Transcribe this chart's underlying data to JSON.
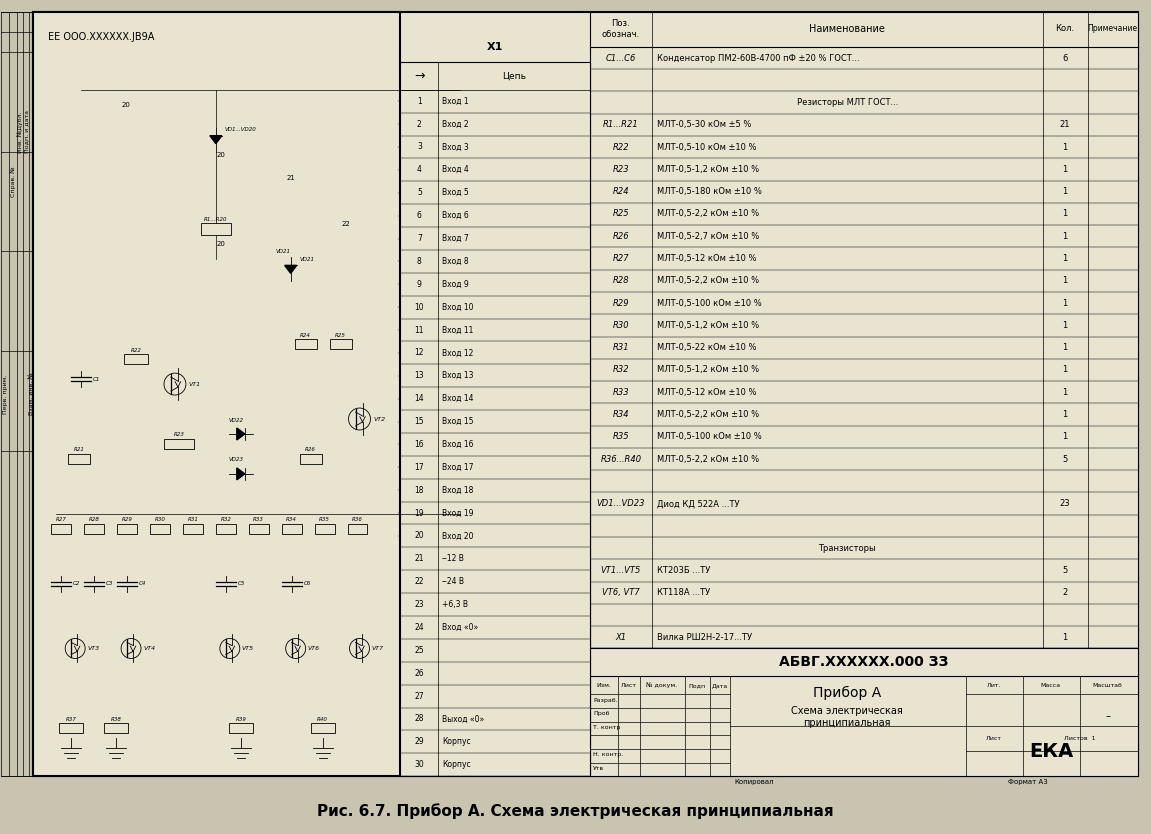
{
  "title": "Рис. 6.7. Прибор А. Схема электрическая принципиальная",
  "bg_color": "#e8e4d0",
  "border_color": "#000000",
  "bom_rows": [
    [
      "C1...C6",
      "Конденсатор ПМ2-60В-4700 пФ ±20 % ГОСТ...",
      "6",
      ""
    ],
    [
      "",
      "",
      "",
      ""
    ],
    [
      "",
      "Резисторы МЛТ ГОСТ...",
      "",
      ""
    ],
    [
      "R1...R21",
      "МЛТ-0,5-30 кОм ±5 %",
      "21",
      ""
    ],
    [
      "R22",
      "МЛТ-0,5-10 кОм ±10 %",
      "1",
      ""
    ],
    [
      "R23",
      "МЛТ-0,5-1,2 кОм ±10 %",
      "1",
      ""
    ],
    [
      "R24",
      "МЛТ-0,5-180 кОм ±10 %",
      "1",
      ""
    ],
    [
      "R25",
      "МЛТ-0,5-2,2 кОм ±10 %",
      "1",
      ""
    ],
    [
      "R26",
      "МЛТ-0,5-2,7 кОм ±10 %",
      "1",
      ""
    ],
    [
      "R27",
      "МЛТ-0,5-12 кОм ±10 %",
      "1",
      ""
    ],
    [
      "R28",
      "МЛТ-0,5-2,2 кОм ±10 %",
      "1",
      ""
    ],
    [
      "R29",
      "МЛТ-0,5-100 кОм ±10 %",
      "1",
      ""
    ],
    [
      "R30",
      "МЛТ-0,5-1,2 кОм ±10 %",
      "1",
      ""
    ],
    [
      "R31",
      "МЛТ-0,5-22 кОм ±10 %",
      "1",
      ""
    ],
    [
      "R32",
      "МЛТ-0,5-1,2 кОм ±10 %",
      "1",
      ""
    ],
    [
      "R33",
      "МЛТ-0,5-12 кОм ±10 %",
      "1",
      ""
    ],
    [
      "R34",
      "МЛТ-0,5-2,2 кОм ±10 %",
      "1",
      ""
    ],
    [
      "R35",
      "МЛТ-0,5-100 кОм ±10 %",
      "1",
      ""
    ],
    [
      "R36...R40",
      "МЛТ-0,5-2,2 кОм ±10 %",
      "5",
      ""
    ],
    [
      "",
      "",
      "",
      ""
    ],
    [
      "VD1...VD23",
      "Диод КД 522А ...ТУ",
      "23",
      ""
    ],
    [
      "",
      "",
      "",
      ""
    ],
    [
      "",
      "Транзисторы",
      "",
      ""
    ],
    [
      "VT1...VT5",
      "КТ203Б ...ТУ",
      "5",
      ""
    ],
    [
      "VT6, VT7",
      "КТ118А ...ТУ",
      "2",
      ""
    ],
    [
      "",
      "",
      "",
      ""
    ],
    [
      "X1",
      "Вилка РШ2Н-2-17...ТУ",
      "1",
      ""
    ]
  ],
  "stamp_code": "АБВГ.XXXXXX.000 ЗЗ",
  "stamp_title1": "Прибор А",
  "stamp_title2": "Схема электрическая",
  "stamp_title3": "принципиальная",
  "stamp_lit": "Лит.",
  "stamp_mass": "Масса",
  "stamp_scale": "Масштаб",
  "stamp_dash": "–",
  "stamp_list": "Лист",
  "stamp_listov": "Листов  1",
  "stamp_org": "ЕКА",
  "stamp_kopirov": "Копировал",
  "stamp_format": "Формат А3",
  "schematic_title": "ЕЕ ООО.XXXXXX.JB9A",
  "x1_label": "X1",
  "connector_rows": [
    [
      "1",
      "Вход 1"
    ],
    [
      "2",
      "Вход 2"
    ],
    [
      "3",
      "Вход 3"
    ],
    [
      "4",
      "Вход 4"
    ],
    [
      "5",
      "Вход 5"
    ],
    [
      "6",
      "Вход 6"
    ],
    [
      "7",
      "Вход 7"
    ],
    [
      "8",
      "Вход 8"
    ],
    [
      "9",
      "Вход 9"
    ],
    [
      "10",
      "Вход 10"
    ],
    [
      "11",
      "Вход 11"
    ],
    [
      "12",
      "Вход 12"
    ],
    [
      "13",
      "Вход 13"
    ],
    [
      "14",
      "Вход 14"
    ],
    [
      "15",
      "Вход 15"
    ],
    [
      "16",
      "Вход 16"
    ],
    [
      "17",
      "Вход 17"
    ],
    [
      "18",
      "Вход 18"
    ],
    [
      "19",
      "Вход 19"
    ],
    [
      "20",
      "Вход 20"
    ],
    [
      "21",
      "‒12 В"
    ],
    [
      "22",
      "‒24 В"
    ],
    [
      "23",
      "+6,3 В"
    ],
    [
      "24",
      "Вход «0»"
    ],
    [
      "25",
      ""
    ],
    [
      "26",
      ""
    ],
    [
      "27",
      ""
    ],
    [
      "28",
      "Выход «0»"
    ],
    [
      "29",
      "Корпус"
    ],
    [
      "30",
      "Корпус"
    ]
  ]
}
